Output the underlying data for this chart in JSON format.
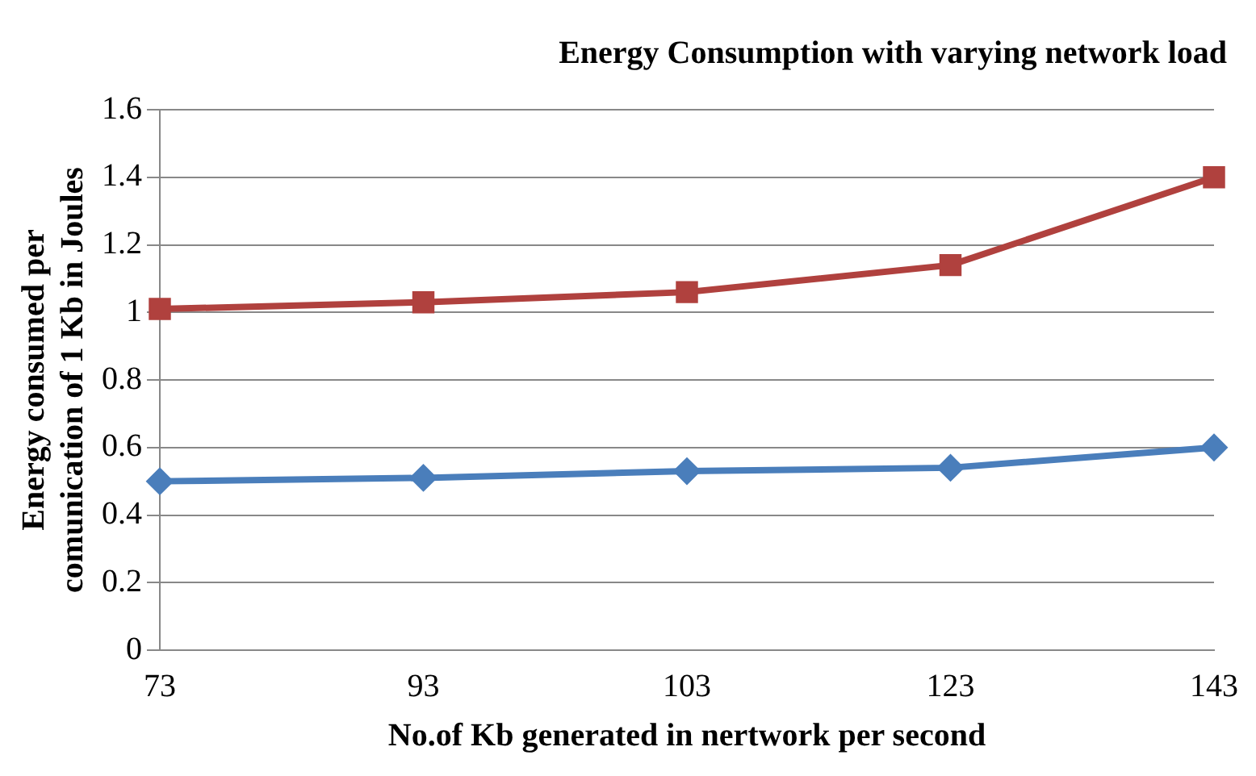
{
  "chart_data": {
    "type": "line",
    "title": "Energy Consumption with varying network load",
    "xlabel": "No.of Kb generated in nertwork per second",
    "ylabel": "Energy consumed per comunication of 1 Kb in Joules",
    "categories": [
      "73",
      "93",
      "103",
      "123",
      "143"
    ],
    "series": [
      {
        "color": "#4a7ebb",
        "marker": "diamond",
        "values": [
          0.5,
          0.51,
          0.53,
          0.54,
          0.6
        ]
      },
      {
        "color": "#b0413e",
        "marker": "square",
        "values": [
          1.01,
          1.03,
          1.06,
          1.14,
          1.4
        ]
      }
    ],
    "ylim": [
      0,
      1.6
    ],
    "yticks": [
      0,
      0.2,
      0.4,
      0.6,
      0.8,
      1,
      1.2,
      1.4,
      1.6
    ],
    "grid": "y",
    "legend": false
  }
}
